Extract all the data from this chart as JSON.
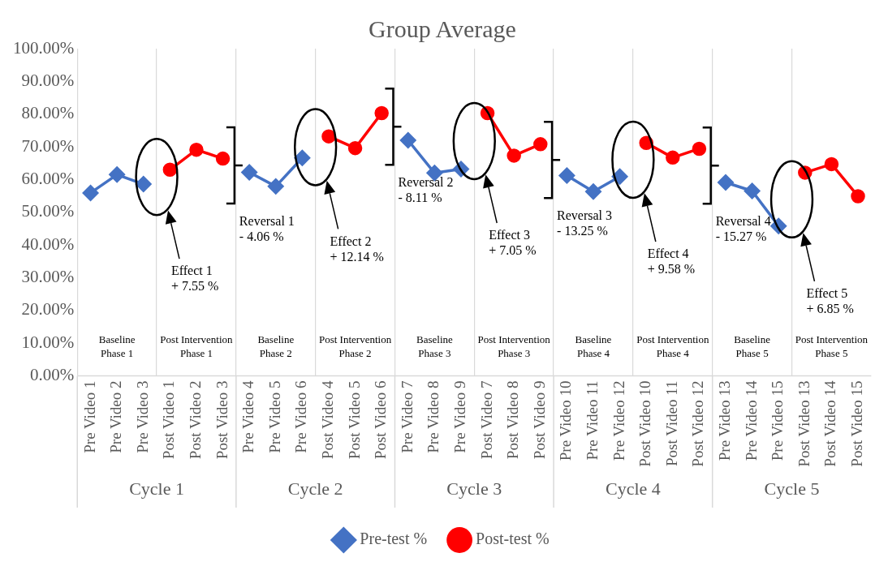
{
  "chart_data": {
    "type": "line",
    "title": "Group Average",
    "categories": [
      "Pre Video 1",
      "Pre Video 2",
      "Pre Video 3",
      "Post Video 1",
      "Post Video 2",
      "Post Video 3",
      "Pre Video 4",
      "Pre Video 5",
      "Pre Video 6",
      "Post Video 4",
      "Post Video 5",
      "Post Video 6",
      "Pre Video 7",
      "Pre Video 8",
      "Pre Video 9",
      "Post Video 7",
      "Post Video 8",
      "Post Video 9",
      "Pre Video 10",
      "Pre Video 11",
      "Pre Video 12",
      "Post Video 10",
      "Post Video 11",
      "Post Video 12",
      "Pre Video 13",
      "Pre Video 14",
      "Pre Video 15",
      "Post Video 13",
      "Post Video 14",
      "Post Video 15"
    ],
    "series": [
      {
        "name": "Pre-test %",
        "color": "#4472c4",
        "marker": "diamond",
        "values": [
          55.9,
          61.5,
          58.6,
          null,
          null,
          null,
          62.2,
          57.9,
          66.6,
          null,
          null,
          null,
          72.0,
          62.0,
          63.2,
          null,
          null,
          null,
          61.2,
          56.3,
          60.9,
          null,
          null,
          null,
          59.1,
          56.5,
          45.8,
          null,
          null,
          null
        ]
      },
      {
        "name": "Post-test %",
        "color": "#ff0000",
        "marker": "circle",
        "values": [
          null,
          null,
          null,
          63.0,
          69.1,
          66.4,
          null,
          null,
          null,
          73.2,
          69.6,
          80.3,
          null,
          null,
          null,
          80.3,
          67.3,
          70.8,
          null,
          null,
          null,
          71.2,
          66.7,
          69.4,
          null,
          null,
          null,
          62.1,
          64.7,
          54.9
        ]
      }
    ],
    "ylim": [
      0,
      100
    ],
    "yticks": [
      {
        "value": 0,
        "label": "0.00%"
      },
      {
        "value": 10,
        "label": "10.00%"
      },
      {
        "value": 20,
        "label": "20.00%"
      },
      {
        "value": 30,
        "label": "30.00%"
      },
      {
        "value": 40,
        "label": "40.00%"
      },
      {
        "value": 50,
        "label": "50.00%"
      },
      {
        "value": 60,
        "label": "60.00%"
      },
      {
        "value": 70,
        "label": "70.00%"
      },
      {
        "value": 80,
        "label": "80.00%"
      },
      {
        "value": 90,
        "label": "90.00%"
      },
      {
        "value": 100,
        "label": "100.00%"
      }
    ],
    "grid": "x",
    "legend": "bottom",
    "line_style": "solid",
    "annotations": [
      "Cycle 1",
      "Cycle 2",
      "Cycle 3",
      "Cycle 4",
      "Cycle 5",
      "Baseline\nPhase 1",
      "Post Intervention\nPhase 1",
      "Baseline\nPhase 2",
      "Post Intervention\nPhase 2",
      "Baseline\nPhase 3",
      "Post Intervention\nPhase 3",
      "Baseline\nPhase 4",
      "Post Intervention\nPhase 4",
      "Baseline\nPhase 5",
      "Post Intervention\nPhase 5",
      "Effect 1\n+ 7.55 %",
      "Effect 2\n+ 12.14 %",
      "Effect 3\n+ 7.05 %",
      "Effect 4\n+ 9.58 %",
      "Effect 5\n+ 6.85 %",
      "Reversal 1\n- 4.06 %",
      "Reversal 2\n- 8.11 %",
      "Reversal 3\n- 13.25 %",
      "Reversal 4\n- 15.27 %"
    ]
  }
}
